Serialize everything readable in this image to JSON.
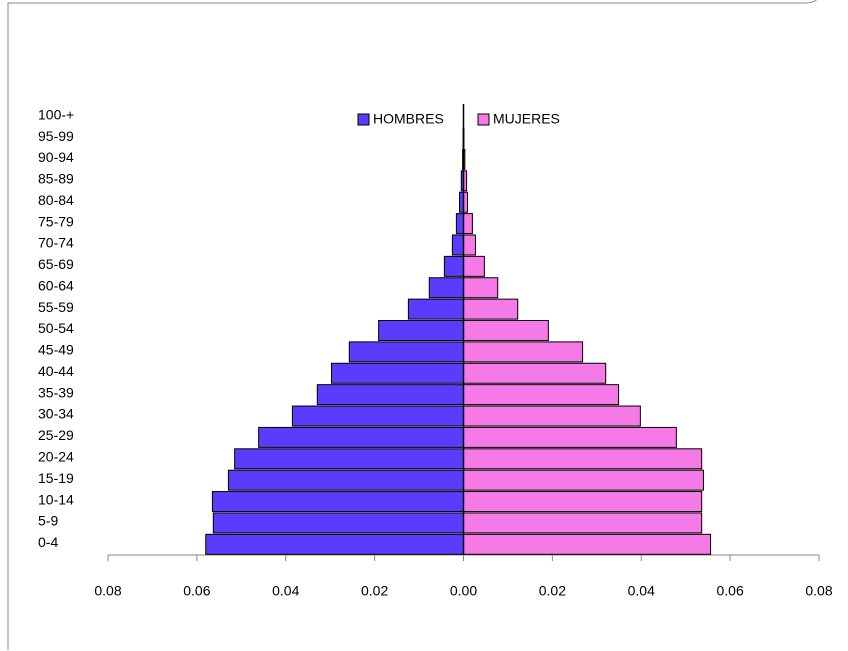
{
  "chart_data": {
    "type": "pyramid",
    "categories": [
      "0-4",
      "5-9",
      "10-14",
      "15-19",
      "20-24",
      "25-29",
      "30-34",
      "35-39",
      "40-44",
      "45-49",
      "50-54",
      "55-59",
      "60-64",
      "65-69",
      "70-74",
      "75-79",
      "80-84",
      "85-89",
      "90-94",
      "95-99",
      "100-+"
    ],
    "series": [
      {
        "name": "HOMBRES",
        "color": "#5a3cff",
        "values": [
          -0.058,
          -0.0563,
          -0.0565,
          -0.0529,
          -0.0515,
          -0.0461,
          -0.0385,
          -0.0329,
          -0.0297,
          -0.0257,
          -0.0191,
          -0.0124,
          -0.0077,
          -0.0043,
          -0.0025,
          -0.0016,
          -0.0009,
          -0.0005,
          -0.0002,
          -0.0001,
          0
        ]
      },
      {
        "name": "MUJERES",
        "color": "#f57ae8",
        "values": [
          0.0556,
          0.0536,
          0.0536,
          0.054,
          0.0536,
          0.0479,
          0.0398,
          0.0349,
          0.032,
          0.0268,
          0.0191,
          0.0122,
          0.0077,
          0.0047,
          0.0027,
          0.002,
          0.0009,
          0.0007,
          0.0003,
          0.0001,
          0
        ]
      }
    ],
    "xlim": [
      -0.08,
      0.08
    ],
    "xticks": [
      {
        "value": -0.08,
        "label": "0.08"
      },
      {
        "value": -0.06,
        "label": "0.06"
      },
      {
        "value": -0.04,
        "label": "0.04"
      },
      {
        "value": -0.02,
        "label": "0.02"
      },
      {
        "value": 0,
        "label": "0.00"
      },
      {
        "value": 0.02,
        "label": "0.02"
      },
      {
        "value": 0.04,
        "label": "0.04"
      },
      {
        "value": 0.06,
        "label": "0.06"
      },
      {
        "value": 0.08,
        "label": "0.08"
      }
    ],
    "legend": "top"
  }
}
